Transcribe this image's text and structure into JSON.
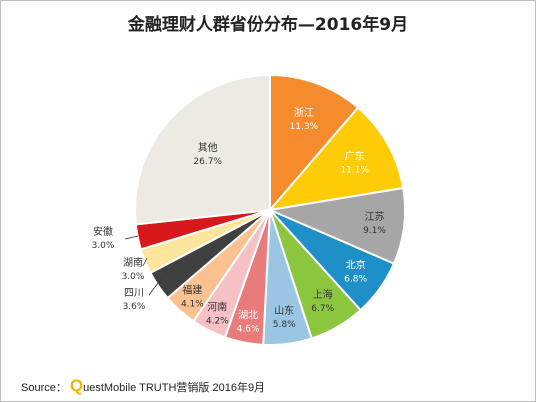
{
  "title": "金融理财人群省份分布—2016年9月",
  "source": {
    "prefix": "Source：",
    "logo_letter": "Q",
    "text": "uestMobile TRUTH营销版 2016年9月"
  },
  "chart_data": {
    "type": "pie",
    "title": "金融理财人群省份分布—2016年9月",
    "unit": "%",
    "slices": [
      {
        "label": "浙江",
        "value": 11.3,
        "display": "11.3%",
        "color": "#f58b2c"
      },
      {
        "label": "广东",
        "value": 11.1,
        "display": "11.1%",
        "color": "#fecb07"
      },
      {
        "label": "江苏",
        "value": 9.1,
        "display": "9.1%",
        "color": "#a6a6a6"
      },
      {
        "label": "北京",
        "value": 6.8,
        "display": "6.8%",
        "color": "#1f8fc8"
      },
      {
        "label": "上海",
        "value": 6.7,
        "display": "6.7%",
        "color": "#8cc63f"
      },
      {
        "label": "山东",
        "value": 5.8,
        "display": "5.8%",
        "color": "#9ac5e3"
      },
      {
        "label": "湖北",
        "value": 4.6,
        "display": "4.6%",
        "color": "#ea7b7b"
      },
      {
        "label": "河南",
        "value": 4.2,
        "display": "4.2%",
        "color": "#f5c1c4"
      },
      {
        "label": "福建",
        "value": 4.1,
        "display": "4.1%",
        "color": "#fbc190"
      },
      {
        "label": "四川",
        "value": 3.6,
        "display": "3.6%",
        "color": "#404040"
      },
      {
        "label": "湖南",
        "value": 3.0,
        "display": "3.0%",
        "color": "#fbe69b"
      },
      {
        "label": "安徽",
        "value": 3.0,
        "display": "3.0%",
        "color": "#d7191c"
      },
      {
        "label": "其他",
        "value": 26.7,
        "display": "26.7%",
        "color": "#edeae3"
      }
    ]
  }
}
